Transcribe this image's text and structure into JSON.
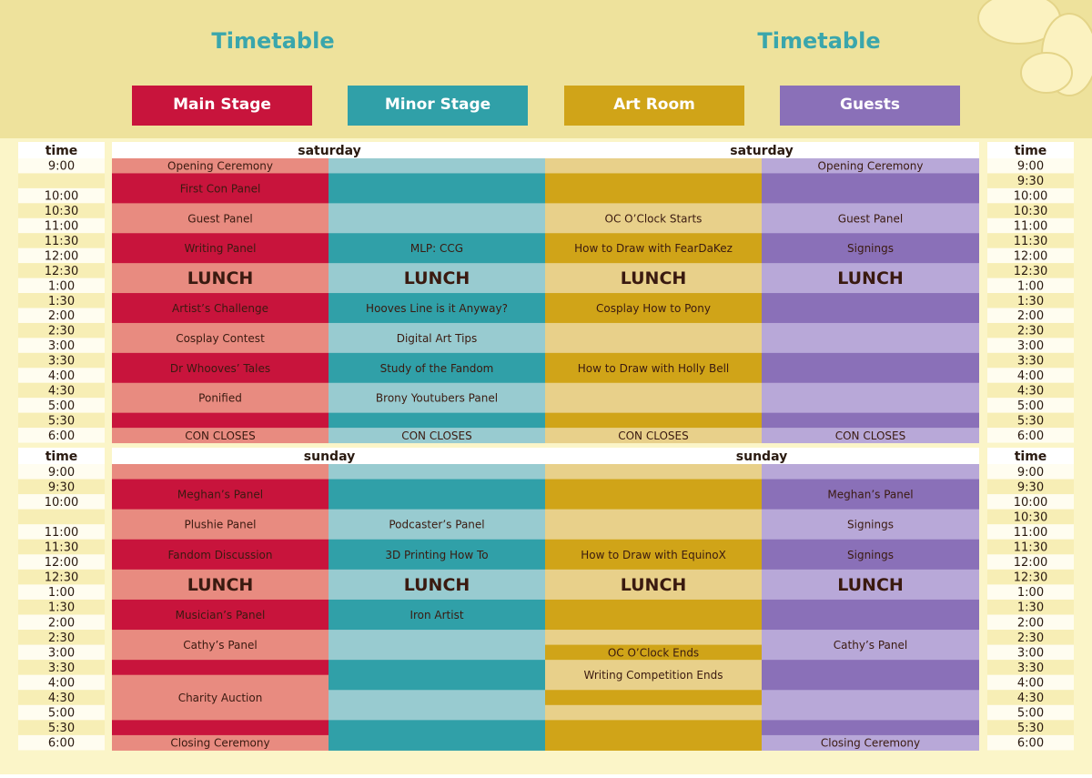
{
  "header": {
    "titles": [
      "Timetable",
      "Timetable"
    ],
    "stages": [
      {
        "name": "Main Stage",
        "color": "#c8143c",
        "light": "#e88b80"
      },
      {
        "name": "Minor Stage",
        "color": "#30a0a8",
        "light": "#98cbd0"
      },
      {
        "name": "Art Room",
        "color": "#d0a418",
        "light": "#e8d08a"
      },
      {
        "name": "Guests",
        "color": "#8a70b8",
        "light": "#b8a8d8"
      }
    ]
  },
  "days": [
    {
      "name": "saturday",
      "time_label": "time",
      "times_left": [
        "9:00",
        null,
        "10:00",
        "10:30",
        "11:00",
        "11:30",
        "12:00",
        "12:30",
        "1:00",
        "1:30",
        "2:00",
        "2:30",
        "3:00",
        "3:30",
        "4:00",
        "4:30",
        "5:00",
        "5:30",
        "6:00"
      ],
      "times_right": [
        "9:00",
        "9:30",
        "10:00",
        "10:30",
        "11:00",
        "11:30",
        "12:00",
        "12:30",
        "1:00",
        "1:30",
        "2:00",
        "2:30",
        "3:00",
        "3:30",
        "4:00",
        "4:30",
        "5:00",
        "5:30",
        "6:00"
      ],
      "columns": [
        [
          {
            "label": "Opening Ceremony",
            "slots": 1
          },
          {
            "label": "First Con Panel",
            "slots": 2
          },
          {
            "label": "Guest Panel",
            "slots": 2
          },
          {
            "label": "Writing Panel",
            "slots": 2
          },
          {
            "label": "LUNCH",
            "slots": 2,
            "style": "large"
          },
          {
            "label": "Artist’s Challenge",
            "slots": 2
          },
          {
            "label": "Cosplay Contest",
            "slots": 2
          },
          {
            "label": "Dr Whooves’ Tales",
            "slots": 2
          },
          {
            "label": "Ponified",
            "slots": 2
          },
          {
            "slots": 1
          },
          {
            "label": "CON CLOSES",
            "slots": 1
          }
        ],
        [
          {
            "slots": 1
          },
          {
            "slots": 2
          },
          {
            "slots": 2
          },
          {
            "label": "MLP: CCG",
            "slots": 2
          },
          {
            "label": "LUNCH",
            "slots": 2,
            "style": "large"
          },
          {
            "label": "Hooves Line is it Anyway?",
            "slots": 2
          },
          {
            "label": "Digital Art Tips",
            "slots": 2
          },
          {
            "label": "Study of the Fandom",
            "slots": 2
          },
          {
            "label": "Brony Youtubers Panel",
            "slots": 2
          },
          {
            "slots": 1
          },
          {
            "label": "CON CLOSES",
            "slots": 1
          }
        ],
        [
          {
            "slots": 1
          },
          {
            "slots": 2
          },
          {
            "label": "OC O’Clock Starts",
            "slots": 2
          },
          {
            "label": "How to Draw with FearDaKez",
            "slots": 2
          },
          {
            "label": "LUNCH",
            "slots": 2,
            "style": "large"
          },
          {
            "label": "Cosplay How to Pony",
            "slots": 2
          },
          {
            "slots": 2
          },
          {
            "label": "How to Draw with Holly Bell",
            "slots": 2
          },
          {
            "slots": 2
          },
          {
            "slots": 1
          },
          {
            "label": "CON CLOSES",
            "slots": 1
          }
        ],
        [
          {
            "label": "Opening Ceremony",
            "slots": 1
          },
          {
            "slots": 2
          },
          {
            "label": "Guest Panel",
            "slots": 2
          },
          {
            "label": "Signings",
            "slots": 2
          },
          {
            "label": "LUNCH",
            "slots": 2,
            "style": "large"
          },
          {
            "slots": 2
          },
          {
            "slots": 2
          },
          {
            "slots": 2
          },
          {
            "slots": 2
          },
          {
            "slots": 1
          },
          {
            "label": "CON CLOSES",
            "slots": 1
          }
        ]
      ]
    },
    {
      "name": "sunday",
      "time_label": "time",
      "times_left": [
        "9:00",
        "9:30",
        "10:00",
        null,
        "11:00",
        "11:30",
        "12:00",
        "12:30",
        "1:00",
        "1:30",
        "2:00",
        "2:30",
        "3:00",
        "3:30",
        "4:00",
        "4:30",
        "5:00",
        "5:30",
        "6:00"
      ],
      "times_right": [
        "9:00",
        "9:30",
        "10:00",
        "10:30",
        "11:00",
        "11:30",
        "12:00",
        "12:30",
        "1:00",
        "1:30",
        "2:00",
        "2:30",
        "3:00",
        "3:30",
        "4:00",
        "4:30",
        "5:00",
        "5:30",
        "6:00"
      ],
      "columns": [
        [
          {
            "slots": 1
          },
          {
            "label": "Meghan’s Panel",
            "slots": 2
          },
          {
            "label": "Plushie Panel",
            "slots": 2
          },
          {
            "label": "Fandom Discussion",
            "slots": 2
          },
          {
            "label": "LUNCH",
            "slots": 2,
            "style": "large"
          },
          {
            "label": "Musician’s Panel",
            "slots": 2
          },
          {
            "label": "Cathy’s Panel",
            "slots": 2
          },
          {
            "slots": 1
          },
          {
            "label": "Charity Auction",
            "slots": 3
          },
          {
            "slots": 1
          },
          {
            "label": "Closing Ceremony",
            "slots": 1
          }
        ],
        [
          {
            "slots": 1
          },
          {
            "slots": 2
          },
          {
            "label": "Podcaster’s Panel",
            "slots": 2
          },
          {
            "label": "3D Printing How To",
            "slots": 2
          },
          {
            "label": "LUNCH",
            "slots": 2,
            "style": "large"
          },
          {
            "label": "Iron Artist",
            "slots": 2
          },
          {
            "slots": 2
          },
          {
            "slots": 2
          },
          {
            "slots": 2
          },
          {
            "slots": 2
          }
        ],
        [
          {
            "slots": 1
          },
          {
            "slots": 2
          },
          {
            "slots": 2
          },
          {
            "label": "How to Draw with EquinoX",
            "slots": 2
          },
          {
            "label": "LUNCH",
            "slots": 2,
            "style": "large"
          },
          {
            "slots": 2
          },
          {
            "slots": 1
          },
          {
            "label": "OC O’Clock Ends",
            "slots": 1
          },
          {
            "label": "Writing Competition Ends",
            "slots": 2
          },
          {
            "slots": 1
          },
          {
            "slots": 1
          },
          {
            "slots": 2
          }
        ],
        [
          {
            "slots": 1
          },
          {
            "label": "Meghan’s Panel",
            "slots": 2
          },
          {
            "label": "Signings",
            "slots": 2
          },
          {
            "label": "Signings",
            "slots": 2
          },
          {
            "label": "LUNCH",
            "slots": 2,
            "style": "large"
          },
          {
            "slots": 2
          },
          {
            "label": "Cathy’s Panel",
            "slots": 2
          },
          {
            "slots": 2
          },
          {
            "slots": 2
          },
          {
            "slots": 1
          },
          {
            "label": "Closing Ceremony",
            "slots": 1
          }
        ]
      ]
    }
  ]
}
